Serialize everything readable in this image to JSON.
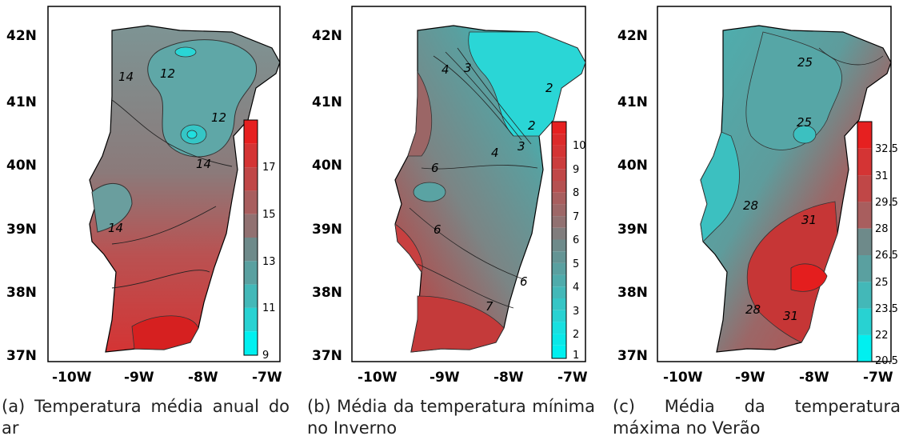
{
  "panels": [
    {
      "id": "a",
      "caption": "(a) Temperatura média anual do ar",
      "y_ticks": [
        "42N",
        "41N",
        "40N",
        "39N",
        "38N",
        "37N"
      ],
      "x_ticks": [
        "-10W",
        "-9W",
        "-8W",
        "-7W"
      ],
      "colorbar_labels": [
        "17",
        "15",
        "13",
        "11",
        "9"
      ],
      "contour_labels": [
        "14",
        "12",
        "12",
        "14",
        "14"
      ],
      "colorbar_range": [
        9,
        19
      ]
    },
    {
      "id": "b",
      "caption": "(b) Média da temperatura mínima no Inverno",
      "y_ticks": [
        "42N",
        "41N",
        "40N",
        "39N",
        "38N",
        "37N"
      ],
      "x_ticks": [
        "-10W",
        "-9W",
        "-8W",
        "-7W"
      ],
      "colorbar_labels": [
        "10",
        "9",
        "8",
        "7",
        "6",
        "5",
        "4",
        "3",
        "2",
        "1"
      ],
      "contour_labels": [
        "4",
        "3",
        "2",
        "2",
        "3",
        "4",
        "6",
        "6",
        "6",
        "7"
      ],
      "colorbar_range": [
        1,
        11
      ]
    },
    {
      "id": "c",
      "caption": "(c) Média da temperatura máxima no Verão",
      "y_ticks": [
        "42N",
        "41N",
        "40N",
        "39N",
        "38N",
        "37N"
      ],
      "x_ticks": [
        "-10W",
        "-9W",
        "-8W",
        "-7W"
      ],
      "colorbar_labels": [
        "32.5",
        "31",
        "29.5",
        "28",
        "26.5",
        "25",
        "23.5",
        "22",
        "20.5"
      ],
      "contour_labels": [
        "25",
        "25",
        "28",
        "31",
        "28",
        "31"
      ],
      "colorbar_range": [
        20.5,
        34
      ]
    }
  ],
  "colors": {
    "cold": "#00f0f0",
    "mid": "#6e8a8a",
    "warm": "#e62020"
  }
}
